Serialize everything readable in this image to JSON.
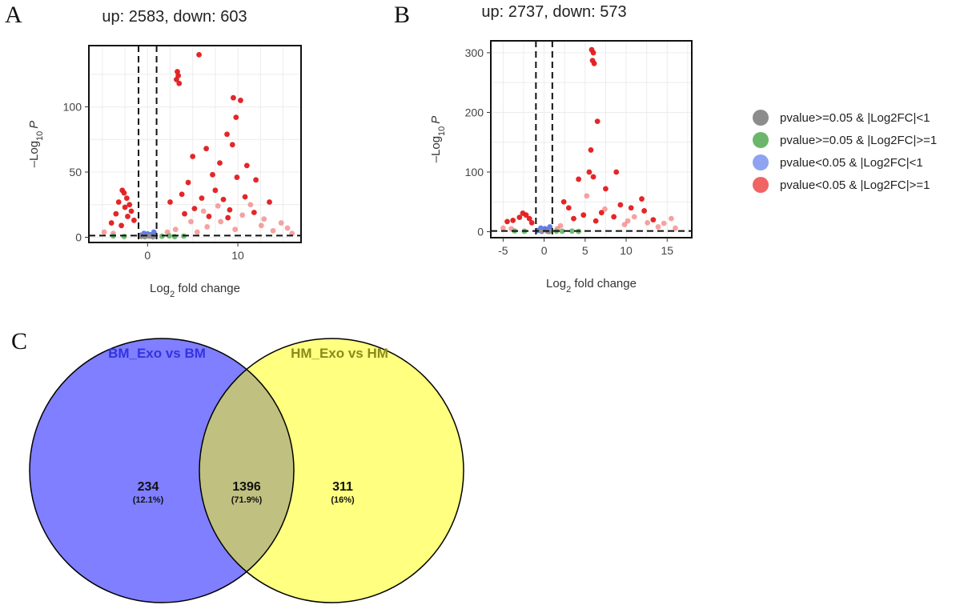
{
  "panel_labels": {
    "a": "A",
    "b": "B",
    "c": "C"
  },
  "legend": [
    {
      "label": "pvalue>=0.05 & |Log2FC|<1",
      "color": "#8c8c8c"
    },
    {
      "label": "pvalue>=0.05 & |Log2FC|>=1",
      "color": "#6bb66b"
    },
    {
      "label": "pvalue<0.05 & |Log2FC|<1",
      "color": "#8fa3f0"
    },
    {
      "label": "pvalue<0.05 & |Log2FC|>=1",
      "color": "#f06464"
    }
  ],
  "chart_data": [
    {
      "type": "scatter",
      "title": "up: 2583, down: 603",
      "xlabel": "Log2 fold change",
      "ylabel": "-Log10 P",
      "xlim": [
        -6.5,
        17
      ],
      "ylim": [
        -4,
        147
      ],
      "xticks": [
        0,
        10
      ],
      "yticks": [
        0,
        50,
        100
      ],
      "vlines": [
        -1,
        1
      ],
      "hline": 1.3,
      "series": [
        {
          "name": "pvalue<0.05 & |Log2FC|>=1 (solid)",
          "color": "#e31a1c",
          "points": [
            [
              5.7,
              140
            ],
            [
              3.3,
              127
            ],
            [
              3.4,
              124
            ],
            [
              3.2,
              121
            ],
            [
              3.5,
              118
            ],
            [
              9.5,
              107
            ],
            [
              10.3,
              105
            ],
            [
              9.8,
              92
            ],
            [
              8.8,
              79
            ],
            [
              9.4,
              71
            ],
            [
              6.5,
              68
            ],
            [
              5.0,
              62
            ],
            [
              8.0,
              57
            ],
            [
              11.0,
              55
            ],
            [
              7.2,
              48
            ],
            [
              9.9,
              46
            ],
            [
              12.0,
              44
            ],
            [
              4.5,
              42
            ],
            [
              -2.8,
              36
            ],
            [
              -2.6,
              34
            ],
            [
              -2.3,
              30
            ],
            [
              -3.2,
              27
            ],
            [
              -2.0,
              25
            ],
            [
              -2.5,
              23
            ],
            [
              -1.8,
              20
            ],
            [
              -3.5,
              18
            ],
            [
              -2.2,
              16
            ],
            [
              -1.5,
              13
            ],
            [
              -4.0,
              11
            ],
            [
              -2.9,
              9
            ],
            [
              2.5,
              27
            ],
            [
              3.8,
              33
            ],
            [
              6.0,
              30
            ],
            [
              7.5,
              36
            ],
            [
              8.4,
              29
            ],
            [
              10.8,
              31
            ],
            [
              13.5,
              27
            ],
            [
              5.2,
              22
            ],
            [
              9.1,
              21
            ],
            [
              11.8,
              19
            ],
            [
              4.1,
              18
            ],
            [
              6.8,
              16
            ],
            [
              8.9,
              15
            ]
          ]
        },
        {
          "name": "pvalue<0.05 & |Log2FC|>=1 (light)",
          "color": "#f06464",
          "points": [
            [
              15.5,
              7
            ],
            [
              14.8,
              11
            ],
            [
              13.9,
              5
            ],
            [
              12.6,
              9
            ],
            [
              10.5,
              17
            ],
            [
              7.8,
              24
            ],
            [
              6.2,
              20
            ],
            [
              4.8,
              12
            ],
            [
              3.1,
              6
            ],
            [
              2.2,
              4
            ],
            [
              -4.8,
              4
            ],
            [
              -3.8,
              3
            ],
            [
              16.0,
              3
            ],
            [
              11.4,
              25
            ],
            [
              8.1,
              12
            ],
            [
              6.6,
              8
            ],
            [
              5.5,
              4
            ],
            [
              9.7,
              6
            ],
            [
              12.9,
              14
            ]
          ]
        },
        {
          "name": "pvalue>=0.05 & |Log2FC|>=1",
          "color": "#6bb66b",
          "points": [
            [
              -3.8,
              1.0
            ],
            [
              -2.6,
              0.6
            ],
            [
              1.6,
              0.8
            ],
            [
              2.4,
              1.1
            ],
            [
              3.0,
              0.5
            ],
            [
              4.0,
              0.9
            ]
          ]
        },
        {
          "name": "pvalue<0.05 & |Log2FC|<1",
          "color": "#5a78e8",
          "points": [
            [
              -0.4,
              3
            ],
            [
              0.3,
              2
            ],
            [
              0.7,
              4
            ],
            [
              -0.8,
              1.5
            ],
            [
              0.0,
              2.6
            ],
            [
              0.5,
              1.2
            ]
          ]
        },
        {
          "name": "pvalue>=0.05 & |Log2FC|<1",
          "color": "#8c8c8c",
          "points": [
            [
              -0.3,
              0.4
            ],
            [
              0.2,
              0.8
            ],
            [
              0.6,
              0.3
            ],
            [
              -0.7,
              0.6
            ]
          ]
        }
      ]
    },
    {
      "type": "scatter",
      "title": "up: 2737, down: 573",
      "xlabel": "Log2 fold change",
      "ylabel": "-Log10 P",
      "xlim": [
        -6.5,
        18
      ],
      "ylim": [
        -10,
        320
      ],
      "xticks": [
        -5,
        0,
        5,
        10,
        15
      ],
      "yticks": [
        0,
        100,
        200,
        300
      ],
      "vlines": [
        -1,
        1
      ],
      "hline": 1.3,
      "series": [
        {
          "name": "pvalue<0.05 & |Log2FC|>=1 (solid)",
          "color": "#e31a1c",
          "points": [
            [
              5.8,
              305
            ],
            [
              6.0,
              300
            ],
            [
              5.9,
              287
            ],
            [
              6.1,
              282
            ],
            [
              6.5,
              185
            ],
            [
              5.7,
              137
            ],
            [
              8.8,
              100
            ],
            [
              5.5,
              100
            ],
            [
              6.0,
              92
            ],
            [
              4.2,
              88
            ],
            [
              7.5,
              72
            ],
            [
              11.9,
              55
            ],
            [
              -2.6,
              31
            ],
            [
              -2.2,
              28
            ],
            [
              -3.0,
              24
            ],
            [
              -1.8,
              22
            ],
            [
              -3.8,
              19
            ],
            [
              -4.5,
              17
            ],
            [
              -1.5,
              15
            ],
            [
              2.4,
              50
            ],
            [
              3.0,
              40
            ],
            [
              9.3,
              45
            ],
            [
              10.6,
              40
            ],
            [
              12.2,
              35
            ],
            [
              7.0,
              32
            ],
            [
              4.8,
              28
            ],
            [
              8.5,
              25
            ],
            [
              13.3,
              20
            ],
            [
              3.6,
              22
            ],
            [
              6.3,
              18
            ]
          ]
        },
        {
          "name": "pvalue<0.05 & |Log2FC|>=1 (light)",
          "color": "#f06464",
          "points": [
            [
              15.5,
              22
            ],
            [
              14.6,
              14
            ],
            [
              13.9,
              8
            ],
            [
              11.0,
              25
            ],
            [
              9.8,
              12
            ],
            [
              2.0,
              10
            ],
            [
              1.6,
              5
            ],
            [
              -5.0,
              6
            ],
            [
              -4.0,
              5
            ],
            [
              5.2,
              60
            ],
            [
              7.4,
              38
            ],
            [
              10.2,
              18
            ],
            [
              12.6,
              15
            ],
            [
              16.0,
              6
            ]
          ]
        },
        {
          "name": "pvalue>=0.05 & |Log2FC|>=1",
          "color": "#6bb66b",
          "points": [
            [
              -3.6,
              1.2
            ],
            [
              1.5,
              1.0
            ],
            [
              2.2,
              0.8
            ],
            [
              3.4,
              1.1
            ],
            [
              -2.4,
              0.8
            ],
            [
              4.2,
              0.6
            ]
          ]
        },
        {
          "name": "pvalue<0.05 & |Log2FC|<1",
          "color": "#5a78e8",
          "points": [
            [
              -0.4,
              6
            ],
            [
              0.3,
              3
            ],
            [
              0.7,
              8
            ],
            [
              -0.8,
              2
            ],
            [
              0.1,
              5
            ]
          ]
        },
        {
          "name": "pvalue>=0.05 & |Log2FC|<1",
          "color": "#8c8c8c",
          "points": [
            [
              -0.3,
              0.5
            ],
            [
              0.4,
              0.8
            ],
            [
              0.6,
              0.3
            ]
          ]
        }
      ]
    },
    {
      "type": "venn",
      "sets": [
        {
          "name": "BM_Exo vs BM",
          "color": "#7f7fff",
          "label_color": "#3333e0"
        },
        {
          "name": "HM_Exo vs HM",
          "color": "#ffff80",
          "label_color": "#8a8a1a"
        }
      ],
      "intersection_color": "#c0c080",
      "regions": [
        {
          "region": "BM_Exo vs BM only",
          "count": "234",
          "percent": "(12.1%)"
        },
        {
          "region": "BM_Exo vs BM ∩ HM_Exo vs HM",
          "count": "1396",
          "percent": "(71.9%)"
        },
        {
          "region": "HM_Exo vs HM only",
          "count": "311",
          "percent": "(16%)"
        }
      ]
    }
  ]
}
